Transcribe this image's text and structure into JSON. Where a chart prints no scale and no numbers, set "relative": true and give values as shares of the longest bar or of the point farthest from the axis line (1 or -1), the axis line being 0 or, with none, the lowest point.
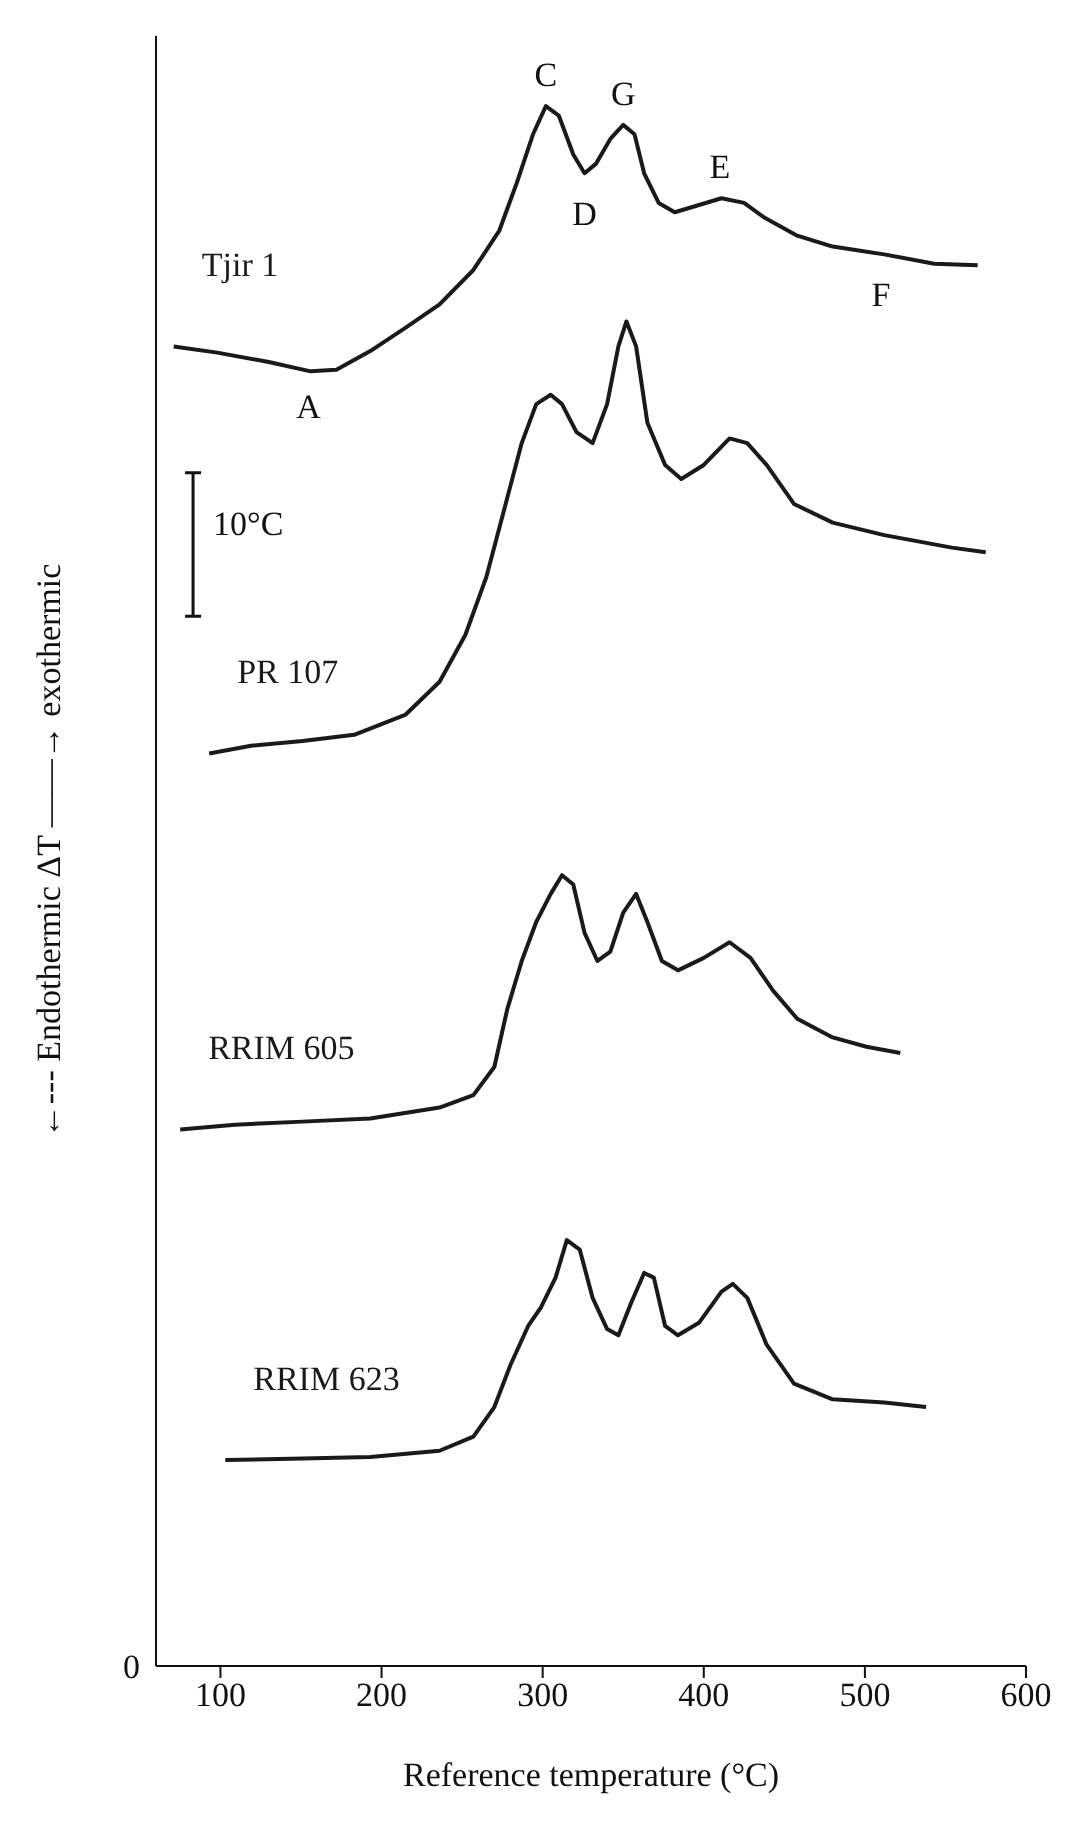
{
  "chart_data": {
    "type": "line",
    "relative": true,
    "xlabel": "Reference temperature (°C)",
    "ylabel": "←--- Endothermic ΔT ——→ exothermic",
    "xlim": [
      60,
      600
    ],
    "xticks": [
      100,
      200,
      300,
      400,
      500,
      600
    ],
    "marker": "none",
    "line_style": "solid",
    "series": [
      {
        "name": "Tjir 1",
        "color": "#1a1a1a",
        "x": [
          71,
          98,
          130,
          156,
          172,
          193,
          215,
          236,
          257,
          273,
          284,
          294,
          302,
          310,
          319,
          326,
          333,
          342,
          350,
          357,
          363,
          372,
          382,
          395,
          411,
          425,
          437,
          458,
          480,
          512,
          543,
          570
        ],
        "values": [
          0.846,
          0.842,
          0.836,
          0.83,
          0.831,
          0.843,
          0.858,
          0.873,
          0.895,
          0.92,
          0.951,
          0.982,
          1.0,
          0.994,
          0.969,
          0.957,
          0.963,
          0.979,
          0.988,
          0.982,
          0.957,
          0.938,
          0.932,
          0.936,
          0.941,
          0.938,
          0.929,
          0.917,
          0.91,
          0.905,
          0.899,
          0.898
        ]
      },
      {
        "name": "PR 107",
        "color": "#1a1a1a",
        "x": [
          93,
          119,
          151,
          183,
          215,
          236,
          252,
          265,
          276,
          287,
          296,
          305,
          312,
          321,
          331,
          340,
          347,
          352,
          358,
          365,
          376,
          386,
          400,
          416,
          427,
          439,
          456,
          480,
          512,
          554,
          575
        ],
        "values": [
          0.585,
          0.59,
          0.593,
          0.597,
          0.61,
          0.631,
          0.661,
          0.698,
          0.741,
          0.784,
          0.809,
          0.815,
          0.809,
          0.791,
          0.784,
          0.809,
          0.846,
          0.862,
          0.846,
          0.797,
          0.77,
          0.761,
          0.77,
          0.787,
          0.784,
          0.77,
          0.745,
          0.733,
          0.725,
          0.717,
          0.714
        ]
      },
      {
        "name": "RRIM 605",
        "color": "#1a1a1a",
        "x": [
          75,
          109,
          151,
          193,
          236,
          257,
          270,
          278,
          287,
          296,
          305,
          312,
          319,
          326,
          334,
          342,
          350,
          358,
          365,
          374,
          384,
          400,
          416,
          429,
          443,
          458,
          480,
          501,
          522
        ],
        "values": [
          0.344,
          0.347,
          0.349,
          0.351,
          0.358,
          0.366,
          0.384,
          0.421,
          0.452,
          0.477,
          0.495,
          0.507,
          0.501,
          0.47,
          0.452,
          0.458,
          0.483,
          0.495,
          0.477,
          0.452,
          0.446,
          0.454,
          0.464,
          0.454,
          0.433,
          0.415,
          0.403,
          0.397,
          0.393
        ]
      },
      {
        "name": "RRIM 623",
        "color": "#1a1a1a",
        "x": [
          103,
          151,
          193,
          236,
          257,
          270,
          280,
          291,
          299,
          308,
          315,
          323,
          331,
          340,
          347,
          355,
          363,
          369,
          376,
          384,
          397,
          411,
          418,
          427,
          439,
          456,
          480,
          512,
          538
        ],
        "values": [
          0.132,
          0.133,
          0.134,
          0.138,
          0.147,
          0.166,
          0.193,
          0.218,
          0.23,
          0.249,
          0.273,
          0.267,
          0.236,
          0.216,
          0.212,
          0.233,
          0.252,
          0.249,
          0.218,
          0.212,
          0.22,
          0.24,
          0.245,
          0.236,
          0.206,
          0.181,
          0.171,
          0.169,
          0.166
        ]
      }
    ],
    "annotations": [
      {
        "text": "A",
        "x": 172,
        "y": 0.831
      },
      {
        "text": "C",
        "x": 302,
        "y": 1.0
      },
      {
        "text": "D",
        "x": 326,
        "y": 0.957
      },
      {
        "text": "G",
        "x": 350,
        "y": 0.988
      },
      {
        "text": "E",
        "x": 410,
        "y": 0.941
      },
      {
        "text": "F",
        "x": 510,
        "y": 0.905
      },
      "10°C",
      "0"
    ]
  }
}
